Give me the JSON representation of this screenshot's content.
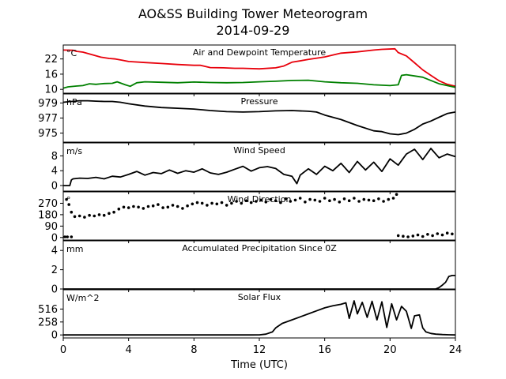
{
  "figure": {
    "title": "AO&SS Building Tower Meteorogram",
    "subtitle": "2014-09-29",
    "xlabel": "Time (UTC)"
  },
  "colors": {
    "air": "#e8000b",
    "dewpoint": "#008000",
    "line": "#000000"
  },
  "chart_data": [
    {
      "type": "line",
      "title": "Air and Dewpoint Temperature",
      "unit": "°C",
      "xlim": [
        0,
        24
      ],
      "ylim": [
        8.5,
        27.5
      ],
      "yticks": [
        10,
        16,
        22
      ],
      "series": [
        {
          "key": "air",
          "x": [
            0,
            0.6,
            0.8,
            1.2,
            1.7,
            2.3,
            2.8,
            3.2,
            3.6,
            4.0,
            5.0,
            6.0,
            7.0,
            8.0,
            8.4,
            9.0,
            9.8,
            10.5,
            11.0,
            12.0,
            13.0,
            13.5,
            14.0,
            15.0,
            16.0,
            17.0,
            18.0,
            19.0,
            19.5,
            20.3,
            20.5,
            21.0,
            21.5,
            22.0,
            22.5,
            23.0,
            23.5,
            24.0
          ],
          "values": [
            25.5,
            25.4,
            25.0,
            24.7,
            23.8,
            22.7,
            22.2,
            22.0,
            21.5,
            21.0,
            20.6,
            20.2,
            19.8,
            19.5,
            19.5,
            18.6,
            18.5,
            18.3,
            18.3,
            18.1,
            18.5,
            19.2,
            20.7,
            21.8,
            22.8,
            24.3,
            24.8,
            25.5,
            25.8,
            26.0,
            24.5,
            23.2,
            20.5,
            17.7,
            15.5,
            13.4,
            12.0,
            11.2
          ]
        },
        {
          "key": "dewpoint",
          "x": [
            0,
            0.3,
            0.8,
            1.2,
            1.6,
            2.0,
            2.5,
            3.0,
            3.3,
            3.8,
            4.1,
            4.5,
            5.0,
            6.0,
            7.0,
            8.0,
            9.0,
            10.0,
            11.0,
            12.0,
            13.0,
            14.0,
            15.0,
            15.5,
            16.0,
            17.0,
            18.0,
            19.0,
            20.0,
            20.5,
            20.7,
            21.0,
            21.5,
            22.0,
            22.5,
            23.0,
            24.0
          ],
          "values": [
            10.5,
            11.0,
            11.3,
            11.5,
            12.2,
            12.0,
            12.3,
            12.4,
            13.0,
            11.8,
            11.2,
            12.6,
            13.0,
            12.8,
            12.6,
            12.9,
            12.7,
            12.6,
            12.7,
            13.0,
            13.2,
            13.5,
            13.6,
            13.3,
            13.0,
            12.6,
            12.4,
            11.8,
            11.5,
            11.8,
            15.5,
            15.8,
            15.3,
            14.8,
            13.5,
            12.2,
            10.8
          ]
        }
      ]
    },
    {
      "type": "line",
      "title": "Pressure",
      "unit": "hPa",
      "xlim": [
        0,
        24
      ],
      "ylim": [
        973.8,
        980.2
      ],
      "yticks": [
        975,
        977,
        979
      ],
      "series": [
        {
          "key": "line",
          "x": [
            0,
            0.5,
            1.0,
            1.5,
            2.0,
            2.5,
            3.0,
            3.5,
            4.0,
            5.0,
            6.0,
            7.0,
            8.0,
            9.0,
            10.0,
            11.0,
            12.0,
            13.0,
            14.0,
            15.0,
            15.5,
            16.0,
            17.0,
            18.0,
            19.0,
            19.5,
            20.0,
            20.5,
            21.0,
            21.5,
            22.0,
            22.5,
            23.0,
            23.5,
            24.0
          ],
          "values": [
            979.1,
            979.2,
            979.3,
            979.3,
            979.25,
            979.2,
            979.2,
            979.1,
            978.9,
            978.6,
            978.4,
            978.3,
            978.2,
            978.0,
            977.85,
            977.8,
            977.85,
            977.95,
            978.0,
            977.9,
            977.8,
            977.4,
            976.8,
            976.0,
            975.3,
            975.2,
            974.9,
            974.8,
            975.0,
            975.5,
            976.2,
            976.6,
            977.1,
            977.6,
            977.8
          ]
        }
      ]
    },
    {
      "type": "line",
      "title": "Wind Speed",
      "unit": "m/s",
      "xlim": [
        0,
        24
      ],
      "ylim": [
        -1.5,
        11.5
      ],
      "yticks": [
        0,
        4,
        8
      ],
      "series": [
        {
          "key": "line",
          "x": [
            0,
            0.4,
            0.5,
            0.6,
            1.0,
            1.5,
            2.0,
            2.5,
            3.0,
            3.5,
            4.0,
            4.5,
            5.0,
            5.5,
            6.0,
            6.5,
            7.0,
            7.5,
            8.0,
            8.5,
            9.0,
            9.5,
            10.0,
            10.5,
            11.0,
            11.5,
            12.0,
            12.5,
            13.0,
            13.5,
            14.0,
            14.3,
            14.5,
            15.0,
            15.5,
            16.0,
            16.5,
            17.0,
            17.5,
            18.0,
            18.5,
            19.0,
            19.5,
            20.0,
            20.5,
            21.0,
            21.5,
            22.0,
            22.5,
            23.0,
            23.5,
            24.0
          ],
          "values": [
            0,
            0,
            1.5,
            1.8,
            2.0,
            1.9,
            2.2,
            1.8,
            2.5,
            2.3,
            3.0,
            3.8,
            2.8,
            3.5,
            3.2,
            4.2,
            3.3,
            4.0,
            3.6,
            4.5,
            3.4,
            3.0,
            3.6,
            4.4,
            5.2,
            3.9,
            4.8,
            5.1,
            4.6,
            3.0,
            2.5,
            0.5,
            2.8,
            4.5,
            3.0,
            5.2,
            4.0,
            6.0,
            3.5,
            6.5,
            4.2,
            6.3,
            3.8,
            7.2,
            5.5,
            8.5,
            9.8,
            7.0,
            10.0,
            7.5,
            8.5,
            7.8
          ]
        }
      ]
    },
    {
      "type": "scatter",
      "title": "Wind Direction",
      "unit": "°",
      "xlim": [
        0,
        24
      ],
      "ylim": [
        -20,
        360
      ],
      "yticks": [
        0,
        90,
        180,
        270
      ],
      "series": [
        {
          "key": "line",
          "x": [
            0.1,
            0.25,
            0.5,
            0.2,
            0.35,
            0.5,
            0.7,
            1.0,
            1.3,
            1.6,
            1.9,
            2.2,
            2.5,
            2.8,
            3.1,
            3.4,
            3.7,
            4.0,
            4.3,
            4.6,
            4.9,
            5.2,
            5.5,
            5.8,
            6.1,
            6.4,
            6.7,
            7.0,
            7.3,
            7.6,
            7.9,
            8.2,
            8.5,
            8.8,
            9.1,
            9.4,
            9.7,
            10.0,
            10.3,
            10.6,
            10.9,
            11.2,
            11.5,
            11.8,
            12.1,
            12.4,
            12.7,
            13.0,
            13.3,
            13.6,
            13.9,
            14.2,
            14.5,
            14.8,
            15.1,
            15.4,
            15.7,
            16.0,
            16.3,
            16.6,
            16.9,
            17.2,
            17.5,
            17.8,
            18.1,
            18.4,
            18.7,
            19.0,
            19.3,
            19.6,
            19.9,
            20.2,
            20.4,
            20.5,
            20.8,
            21.1,
            21.4,
            21.7,
            22.0,
            22.3,
            22.6,
            22.9,
            23.2,
            23.5,
            23.8
          ],
          "values": [
            5,
            5,
            5,
            300,
            260,
            200,
            165,
            170,
            160,
            175,
            170,
            180,
            175,
            190,
            200,
            225,
            240,
            235,
            245,
            240,
            230,
            245,
            250,
            260,
            235,
            240,
            255,
            245,
            230,
            250,
            265,
            275,
            270,
            255,
            270,
            265,
            275,
            255,
            270,
            285,
            270,
            290,
            275,
            285,
            295,
            280,
            300,
            290,
            275,
            305,
            285,
            295,
            310,
            280,
            300,
            295,
            285,
            310,
            290,
            300,
            280,
            305,
            290,
            310,
            285,
            300,
            295,
            290,
            305,
            285,
            300,
            310,
            340,
            15,
            10,
            5,
            12,
            20,
            8,
            25,
            15,
            30,
            20,
            35,
            28
          ]
        }
      ]
    },
    {
      "type": "line",
      "title": "Accumulated Precipitation Since 0Z",
      "unit": "mm",
      "xlim": [
        0,
        24
      ],
      "ylim": [
        0,
        5
      ],
      "yticks": [
        0,
        2,
        4
      ],
      "series": [
        {
          "key": "line",
          "x": [
            0,
            22.8,
            23.0,
            23.2,
            23.4,
            23.6,
            23.8,
            24.0
          ],
          "values": [
            0,
            0,
            0.15,
            0.4,
            0.7,
            1.3,
            1.4,
            1.4
          ]
        }
      ]
    },
    {
      "type": "line",
      "title": "Solar Flux",
      "unit": "W/m^2",
      "xlim": [
        0,
        24
      ],
      "ylim": [
        -60,
        900
      ],
      "yticks": [
        0,
        258,
        516
      ],
      "series": [
        {
          "key": "line",
          "x": [
            0,
            6.0,
            11.5,
            12.0,
            12.4,
            12.8,
            13.0,
            13.4,
            14.0,
            14.5,
            15.0,
            15.5,
            16.0,
            16.5,
            17.0,
            17.3,
            17.5,
            17.8,
            18.0,
            18.3,
            18.6,
            18.9,
            19.2,
            19.5,
            19.8,
            20.1,
            20.4,
            20.7,
            21.0,
            21.3,
            21.5,
            21.8,
            22.0,
            22.2,
            22.5,
            22.8,
            23.2,
            23.6,
            24.0
          ],
          "values": [
            0,
            0,
            0,
            2,
            15,
            60,
            140,
            230,
            300,
            360,
            420,
            480,
            540,
            580,
            610,
            640,
            330,
            680,
            420,
            650,
            350,
            670,
            300,
            660,
            150,
            620,
            300,
            570,
            470,
            130,
            380,
            400,
            140,
            60,
            30,
            15,
            8,
            3,
            0
          ]
        }
      ]
    }
  ],
  "xticks": [
    "0",
    "4",
    "8",
    "12",
    "16",
    "20",
    "24"
  ]
}
